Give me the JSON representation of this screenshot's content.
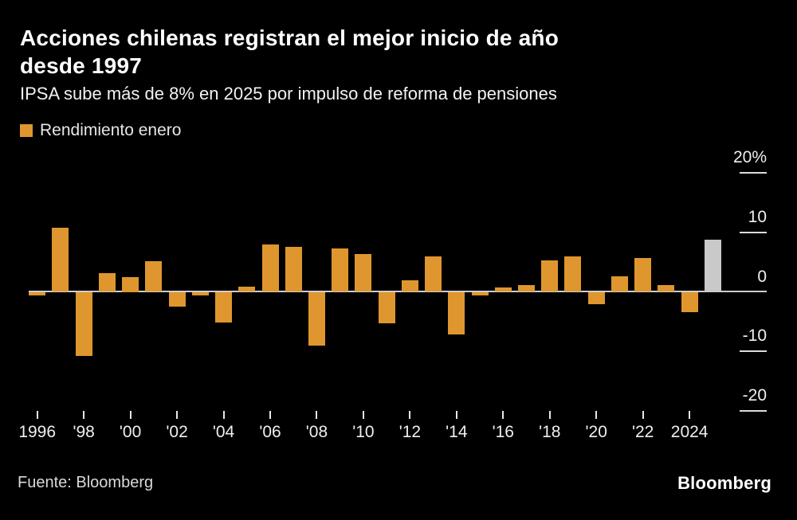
{
  "header": {
    "title_line1": "Acciones chilenas registran el mejor inicio de año",
    "title_line2": "desde 1997",
    "subtitle": "IPSA sube más de 8% en 2025 por impulso de reforma de pensiones"
  },
  "legend": {
    "label": "Rendimiento enero",
    "swatch_color": "#E0962F"
  },
  "chart_data": {
    "type": "bar",
    "title": "Acciones chilenas registran el mejor inicio de año desde 1997",
    "subtitle": "IPSA sube más de 8% en 2025 por impulso de reforma de pensiones",
    "unit": "%",
    "categories": [
      1996,
      1997,
      1998,
      1999,
      2000,
      2001,
      2002,
      2003,
      2004,
      2005,
      2006,
      2007,
      2008,
      2009,
      2010,
      2011,
      2012,
      2013,
      2014,
      2015,
      2016,
      2017,
      2018,
      2019,
      2020,
      2021,
      2022,
      2023,
      2024,
      2025
    ],
    "values": [
      -0.5,
      10.8,
      -10.7,
      3.1,
      2.5,
      5.2,
      -2.4,
      -0.5,
      -5.1,
      0.9,
      8.0,
      7.6,
      -8.9,
      7.3,
      6.4,
      -5.2,
      2.0,
      6.0,
      -7.1,
      -0.5,
      0.8,
      1.2,
      5.3,
      6.0,
      -2.0,
      2.6,
      5.7,
      1.2,
      -3.3,
      8.7
    ],
    "series_name": "Rendimiento enero",
    "highlight_year": 2025,
    "bar_color": "#E0962F",
    "highlight_color": "#C9C9C9",
    "ylim": [
      -25,
      22
    ],
    "grid": false,
    "legend_position": "top-left",
    "yticks": [
      {
        "value": 20,
        "label": "20%"
      },
      {
        "value": 10,
        "label": "10"
      },
      {
        "value": 0,
        "label": "0"
      },
      {
        "value": -10,
        "label": "-10"
      },
      {
        "value": -20,
        "label": "-20"
      }
    ],
    "xticks": [
      {
        "year": 1996,
        "label": "1996"
      },
      {
        "year": 1998,
        "label": "'98"
      },
      {
        "year": 2000,
        "label": "'00"
      },
      {
        "year": 2002,
        "label": "'02"
      },
      {
        "year": 2004,
        "label": "'04"
      },
      {
        "year": 2006,
        "label": "'06"
      },
      {
        "year": 2008,
        "label": "'08"
      },
      {
        "year": 2010,
        "label": "'10"
      },
      {
        "year": 2012,
        "label": "'12"
      },
      {
        "year": 2014,
        "label": "'14"
      },
      {
        "year": 2016,
        "label": "'16"
      },
      {
        "year": 2018,
        "label": "'18"
      },
      {
        "year": 2020,
        "label": "'20"
      },
      {
        "year": 2022,
        "label": "'22"
      },
      {
        "year": 2024,
        "label": "2024"
      }
    ]
  },
  "footer": {
    "source": "Fuente:  Bloomberg",
    "logo": "Bloomberg"
  }
}
